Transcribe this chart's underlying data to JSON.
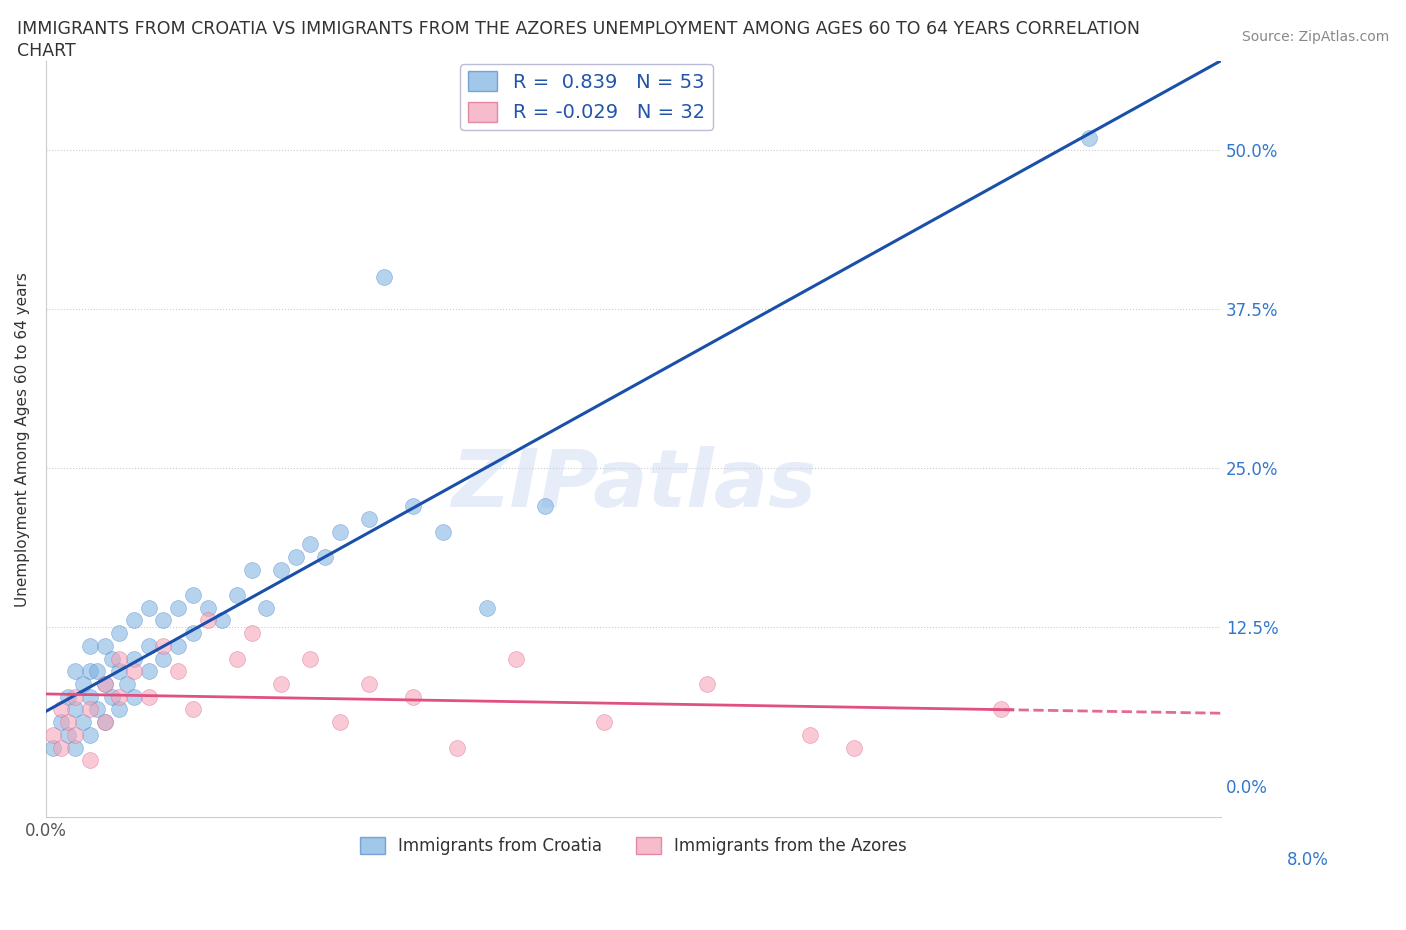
{
  "title_line1": "IMMIGRANTS FROM CROATIA VS IMMIGRANTS FROM THE AZORES UNEMPLOYMENT AMONG AGES 60 TO 64 YEARS CORRELATION",
  "title_line2": "CHART",
  "source": "Source: ZipAtlas.com",
  "ylabel": "Unemployment Among Ages 60 to 64 years",
  "background_color": "#ffffff",
  "croatia_color": "#7ab0e0",
  "azores_color": "#f5a0b5",
  "croatia_R": 0.839,
  "croatia_N": 53,
  "azores_R": -0.029,
  "azores_N": 32,
  "croatia_line_color": "#1a4faa",
  "azores_line_color": "#e05080",
  "legend_label_croatia": "Immigrants from Croatia",
  "legend_label_azores": "Immigrants from the Azores",
  "xlim": [
    0.0,
    0.08
  ],
  "ylim": [
    -0.025,
    0.57
  ],
  "ytick_vals": [
    0.0,
    0.125,
    0.25,
    0.375,
    0.5
  ],
  "ytick_right_labels": [
    "0.0%",
    "12.5%",
    "25.0%",
    "37.5%",
    "50.0%"
  ],
  "croatia_x": [
    0.0005,
    0.001,
    0.0015,
    0.0015,
    0.002,
    0.002,
    0.002,
    0.0025,
    0.0025,
    0.003,
    0.003,
    0.003,
    0.003,
    0.0035,
    0.0035,
    0.004,
    0.004,
    0.004,
    0.0045,
    0.0045,
    0.005,
    0.005,
    0.005,
    0.0055,
    0.006,
    0.006,
    0.006,
    0.007,
    0.007,
    0.007,
    0.008,
    0.008,
    0.009,
    0.009,
    0.01,
    0.01,
    0.011,
    0.012,
    0.013,
    0.014,
    0.015,
    0.016,
    0.017,
    0.018,
    0.019,
    0.02,
    0.022,
    0.023,
    0.025,
    0.027,
    0.03,
    0.034,
    0.071
  ],
  "croatia_y": [
    0.03,
    0.05,
    0.04,
    0.07,
    0.03,
    0.06,
    0.09,
    0.05,
    0.08,
    0.04,
    0.07,
    0.09,
    0.11,
    0.06,
    0.09,
    0.05,
    0.08,
    0.11,
    0.07,
    0.1,
    0.06,
    0.09,
    0.12,
    0.08,
    0.07,
    0.1,
    0.13,
    0.09,
    0.11,
    0.14,
    0.1,
    0.13,
    0.11,
    0.14,
    0.12,
    0.15,
    0.14,
    0.13,
    0.15,
    0.17,
    0.14,
    0.17,
    0.18,
    0.19,
    0.18,
    0.2,
    0.21,
    0.4,
    0.22,
    0.2,
    0.14,
    0.22,
    0.51
  ],
  "azores_x": [
    0.0005,
    0.001,
    0.001,
    0.0015,
    0.002,
    0.002,
    0.003,
    0.003,
    0.004,
    0.004,
    0.005,
    0.005,
    0.006,
    0.007,
    0.008,
    0.009,
    0.01,
    0.011,
    0.013,
    0.014,
    0.016,
    0.018,
    0.02,
    0.022,
    0.025,
    0.028,
    0.032,
    0.038,
    0.045,
    0.052,
    0.055,
    0.065
  ],
  "azores_y": [
    0.04,
    0.03,
    0.06,
    0.05,
    0.04,
    0.07,
    0.06,
    0.02,
    0.05,
    0.08,
    0.07,
    0.1,
    0.09,
    0.07,
    0.11,
    0.09,
    0.06,
    0.13,
    0.1,
    0.12,
    0.08,
    0.1,
    0.05,
    0.08,
    0.07,
    0.03,
    0.1,
    0.05,
    0.08,
    0.04,
    0.03,
    0.06
  ]
}
